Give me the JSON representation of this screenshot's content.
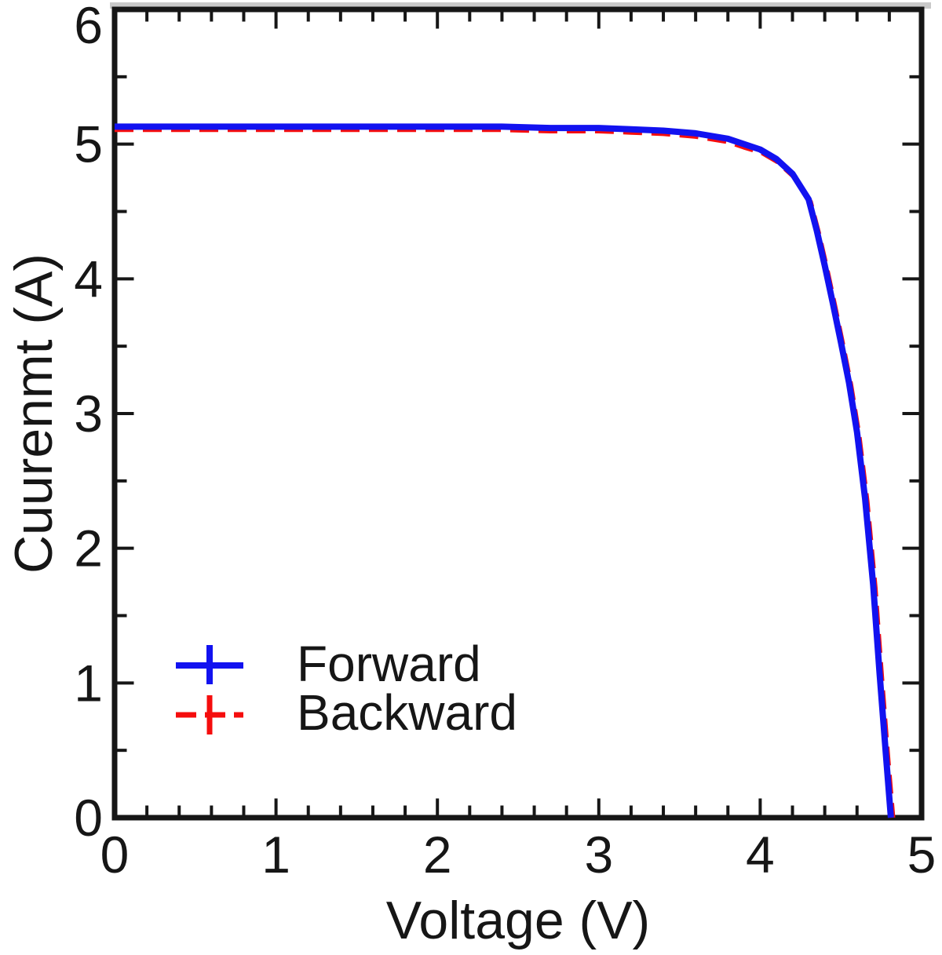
{
  "figure": {
    "background": "#ffffff",
    "top_shadow_color": "#c9c9c9",
    "axis_color": "#161616",
    "text_color": "#161616"
  },
  "chart_data": {
    "type": "line",
    "title": "",
    "xlabel": "Voltage (V)",
    "ylabel": "Cuurenmt (A)",
    "xlim": [
      0,
      5
    ],
    "ylim": [
      0,
      6
    ],
    "grid": false,
    "x_major_ticks": [
      0,
      1,
      2,
      3,
      4,
      5
    ],
    "x_tick_labels": [
      "0",
      "1",
      "2",
      "3",
      "4",
      "5"
    ],
    "x_minor_step": 0.2,
    "y_major_ticks": [
      0,
      1,
      2,
      3,
      4,
      5,
      6
    ],
    "y_tick_labels": [
      "0",
      "1",
      "2",
      "3",
      "4",
      "5",
      "6"
    ],
    "y_minor_step": 0.5,
    "legend": {
      "position": "lower-left",
      "entries": [
        {
          "label": "Forward",
          "color": "#1212f0",
          "line_style": "solid",
          "marker": "plus"
        },
        {
          "label": "Backward",
          "color": "#f50d0d",
          "line_style": "dashed",
          "marker": "plus"
        }
      ]
    },
    "key_values": {
      "short_circuit_current_A": 5.13,
      "open_circuit_voltage_V": 4.81
    },
    "series": [
      {
        "name": "Forward",
        "color": "#1212f0",
        "style": "solid",
        "points": [
          [
            0.0,
            5.13
          ],
          [
            0.3,
            5.13
          ],
          [
            0.6,
            5.13
          ],
          [
            0.9,
            5.13
          ],
          [
            1.2,
            5.13
          ],
          [
            1.5,
            5.13
          ],
          [
            1.8,
            5.13
          ],
          [
            2.1,
            5.13
          ],
          [
            2.4,
            5.13
          ],
          [
            2.7,
            5.12
          ],
          [
            3.0,
            5.12
          ],
          [
            3.2,
            5.11
          ],
          [
            3.4,
            5.1
          ],
          [
            3.6,
            5.08
          ],
          [
            3.8,
            5.04
          ],
          [
            3.9,
            5.0
          ],
          [
            4.0,
            4.96
          ],
          [
            4.1,
            4.89
          ],
          [
            4.2,
            4.78
          ],
          [
            4.3,
            4.59
          ],
          [
            4.35,
            4.36
          ],
          [
            4.4,
            4.1
          ],
          [
            4.45,
            3.82
          ],
          [
            4.5,
            3.53
          ],
          [
            4.55,
            3.23
          ],
          [
            4.6,
            2.86
          ],
          [
            4.65,
            2.37
          ],
          [
            4.7,
            1.73
          ],
          [
            4.74,
            1.07
          ],
          [
            4.78,
            0.45
          ],
          [
            4.81,
            0.0
          ]
        ]
      },
      {
        "name": "Backward",
        "color": "#f50d0d",
        "style": "dashed",
        "points": [
          [
            0.0,
            5.11
          ],
          [
            0.3,
            5.11
          ],
          [
            0.6,
            5.11
          ],
          [
            0.9,
            5.11
          ],
          [
            1.2,
            5.11
          ],
          [
            1.5,
            5.11
          ],
          [
            1.8,
            5.11
          ],
          [
            2.1,
            5.11
          ],
          [
            2.4,
            5.11
          ],
          [
            2.7,
            5.1
          ],
          [
            3.0,
            5.1
          ],
          [
            3.2,
            5.09
          ],
          [
            3.4,
            5.08
          ],
          [
            3.6,
            5.06
          ],
          [
            3.8,
            5.02
          ],
          [
            3.9,
            4.98
          ],
          [
            4.01,
            4.94
          ],
          [
            4.11,
            4.87
          ],
          [
            4.21,
            4.76
          ],
          [
            4.31,
            4.57
          ],
          [
            4.36,
            4.34
          ],
          [
            4.41,
            4.08
          ],
          [
            4.46,
            3.8
          ],
          [
            4.51,
            3.51
          ],
          [
            4.56,
            3.21
          ],
          [
            4.61,
            2.84
          ],
          [
            4.66,
            2.35
          ],
          [
            4.71,
            1.71
          ],
          [
            4.75,
            1.05
          ],
          [
            4.79,
            0.43
          ],
          [
            4.82,
            0.0
          ]
        ]
      }
    ]
  }
}
